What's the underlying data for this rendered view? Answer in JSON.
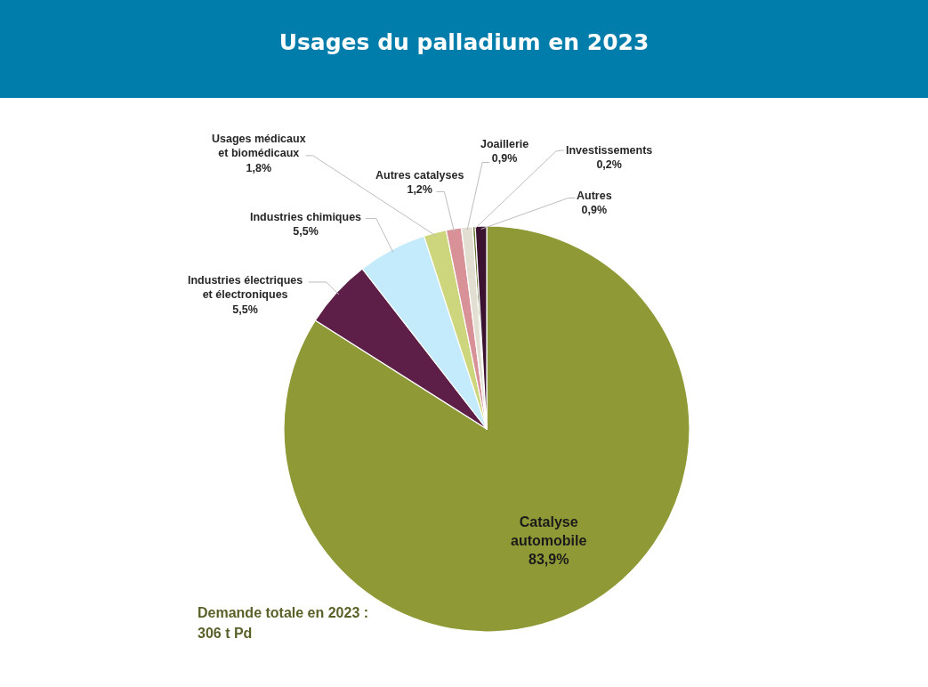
{
  "chart_data": {
    "type": "pie",
    "title": "Usages du palladium en 2023",
    "categories": [
      "Catalyse automobile",
      "Industries électriques et électroniques",
      "Industries chimiques",
      "Usages médicaux et biomédicaux",
      "Autres catalyses",
      "Joaillerie",
      "Investissements",
      "Autres"
    ],
    "values": [
      83.9,
      5.5,
      5.5,
      1.8,
      1.2,
      0.9,
      0.2,
      0.9
    ],
    "value_labels": [
      "83,9%",
      "5,5%",
      "5,5%",
      "1,8%",
      "1,2%",
      "0,9%",
      "0,2%",
      "0,9%"
    ],
    "colors": [
      "#8f9a37",
      "#5d1f47",
      "#c3ebfb",
      "#cdd67c",
      "#d99198",
      "#e2ded2",
      "#6b7530",
      "#3b1330"
    ],
    "annotations": [
      "Demande totale en 2023 :",
      "306 t Pd"
    ]
  }
}
